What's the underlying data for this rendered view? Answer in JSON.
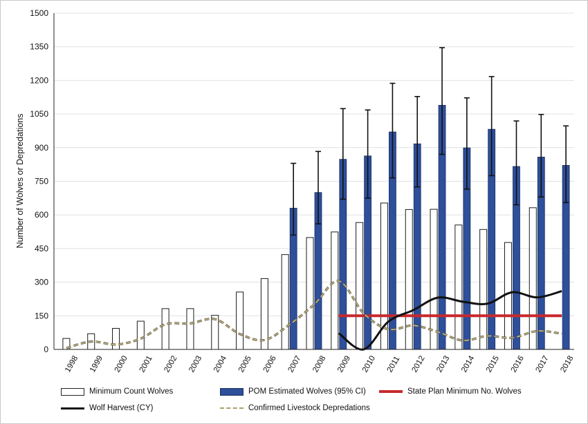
{
  "chart_data": {
    "type": "bar",
    "title": "",
    "xlabel": "",
    "ylabel": "Number of Wolves or Depredations",
    "ylim": [
      0,
      1500
    ],
    "yticks": [
      0,
      150,
      300,
      450,
      600,
      750,
      900,
      1050,
      1200,
      1350,
      1500
    ],
    "grid": "horizontal",
    "legend_position": "bottom",
    "categories": [
      "1998",
      "1999",
      "2000",
      "2001",
      "2002",
      "2003",
      "2004",
      "2005",
      "2006",
      "2007",
      "2008",
      "2009",
      "2010",
      "2011",
      "2012",
      "2013",
      "2014",
      "2015",
      "2016",
      "2017",
      "2018"
    ],
    "series": [
      {
        "name": "Minimum Count Wolves",
        "type": "bar",
        "color": "#ffffff",
        "values": [
          49,
          70,
          94,
          126,
          182,
          182,
          152,
          256,
          316,
          423,
          499,
          524,
          566,
          653,
          624,
          625,
          555,
          535,
          477,
          632,
          0
        ]
      },
      {
        "name": "POM Estimated Wolves (95% CI)",
        "type": "bar",
        "color": "#2e4f9a",
        "values": [
          null,
          null,
          null,
          null,
          null,
          null,
          null,
          null,
          null,
          630,
          700,
          848,
          863,
          970,
          917,
          1089,
          899,
          982,
          816,
          858,
          821
        ],
        "ci_low": [
          null,
          null,
          null,
          null,
          null,
          null,
          null,
          null,
          null,
          510,
          560,
          670,
          675,
          765,
          725,
          870,
          715,
          775,
          645,
          680,
          655
        ],
        "ci_high": [
          null,
          null,
          null,
          null,
          null,
          null,
          null,
          null,
          null,
          830,
          883,
          1074,
          1068,
          1187,
          1128,
          1346,
          1122,
          1217,
          1019,
          1048,
          997
        ]
      },
      {
        "name": "State Plan Minimum No. Wolves",
        "type": "line",
        "color": "#c8282c",
        "values": [
          null,
          null,
          null,
          null,
          null,
          null,
          null,
          null,
          null,
          null,
          null,
          150,
          150,
          150,
          150,
          150,
          150,
          150,
          150,
          150,
          150
        ]
      },
      {
        "name": "Wolf Harvest (CY)",
        "type": "line",
        "color": "#111111",
        "values": [
          null,
          null,
          null,
          null,
          null,
          null,
          null,
          null,
          null,
          null,
          null,
          72,
          0,
          124,
          175,
          231,
          213,
          204,
          255,
          232,
          260
        ]
      },
      {
        "name": "Confirmed Livestock Depredations",
        "type": "line",
        "style": "dashed",
        "color": "#c2b88c",
        "values": [
          6,
          35,
          22,
          48,
          112,
          116,
          135,
          69,
          42,
          110,
          200,
          305,
          161,
          90,
          107,
          78,
          40,
          60,
          52,
          82,
          70
        ]
      }
    ]
  }
}
